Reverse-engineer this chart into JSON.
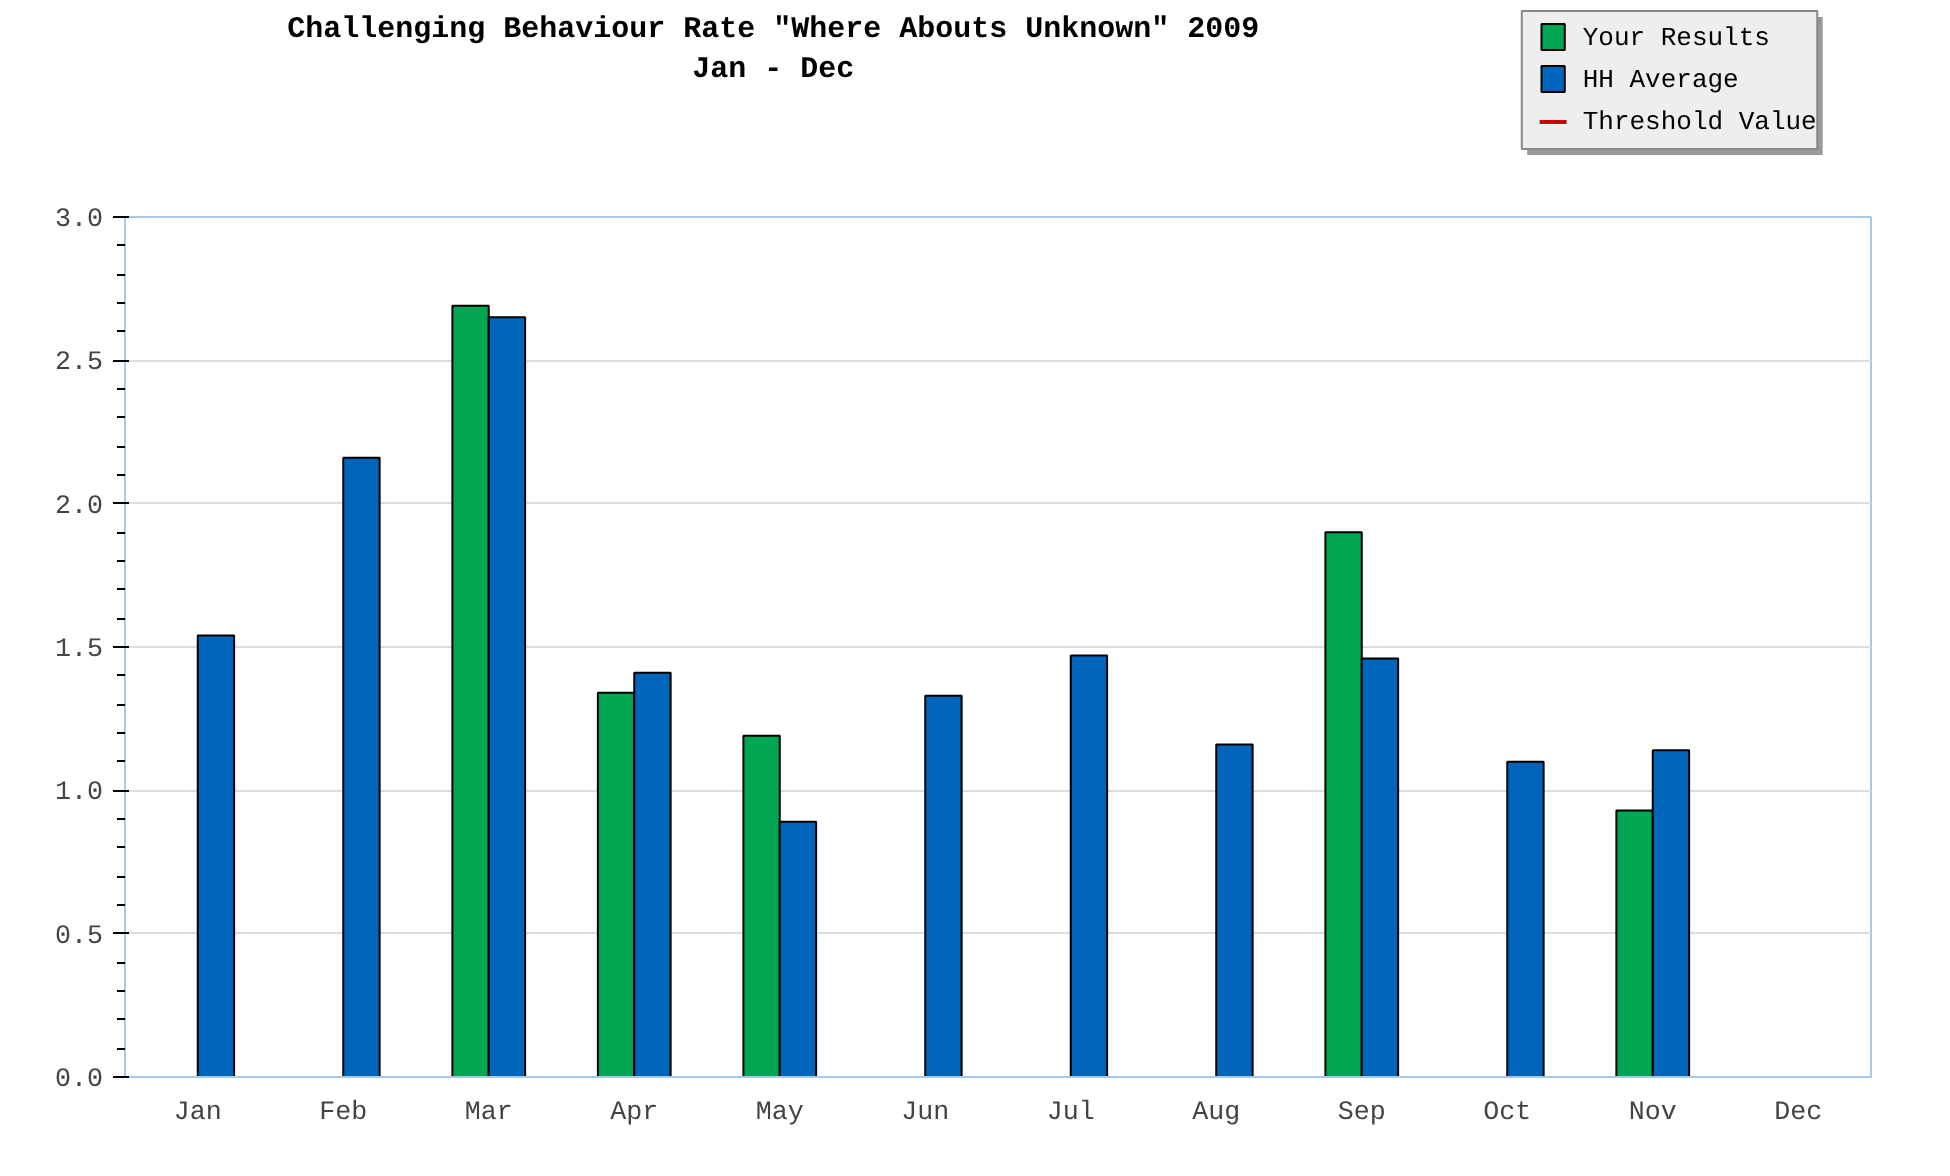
{
  "chart_data": {
    "type": "bar",
    "title": "Challenging Behaviour Rate \"Where Abouts Unknown\" 2009",
    "subtitle": "Jan - Dec",
    "categories": [
      "Jan",
      "Feb",
      "Mar",
      "Apr",
      "May",
      "Jun",
      "Jul",
      "Aug",
      "Sep",
      "Oct",
      "Nov",
      "Dec"
    ],
    "series": [
      {
        "name": "Your Results",
        "color": "#00a651",
        "values": [
          null,
          null,
          2.69,
          1.34,
          1.19,
          null,
          null,
          null,
          1.9,
          null,
          0.93,
          null
        ]
      },
      {
        "name": "HH Average",
        "color": "#0066bb",
        "values": [
          1.54,
          2.16,
          2.65,
          1.41,
          0.89,
          1.33,
          1.47,
          1.16,
          1.46,
          1.1,
          1.14,
          null
        ]
      },
      {
        "name": "Threshold Value",
        "color": "#cc0000",
        "type": "line",
        "values": [
          null,
          null,
          null,
          null,
          null,
          null,
          null,
          null,
          null,
          null,
          null,
          null
        ]
      }
    ],
    "ylim": [
      0,
      3.0
    ],
    "yticks": [
      {
        "value": 0,
        "label": "0.0"
      },
      {
        "value": 0.5,
        "label": "0.5"
      },
      {
        "value": 1,
        "label": "1.0"
      },
      {
        "value": 1.5,
        "label": "1.5"
      },
      {
        "value": 2,
        "label": "2.0"
      },
      {
        "value": 2.5,
        "label": "2.5"
      },
      {
        "value": 3,
        "label": "3.0"
      }
    ],
    "grid": "y",
    "legend": "top right"
  }
}
